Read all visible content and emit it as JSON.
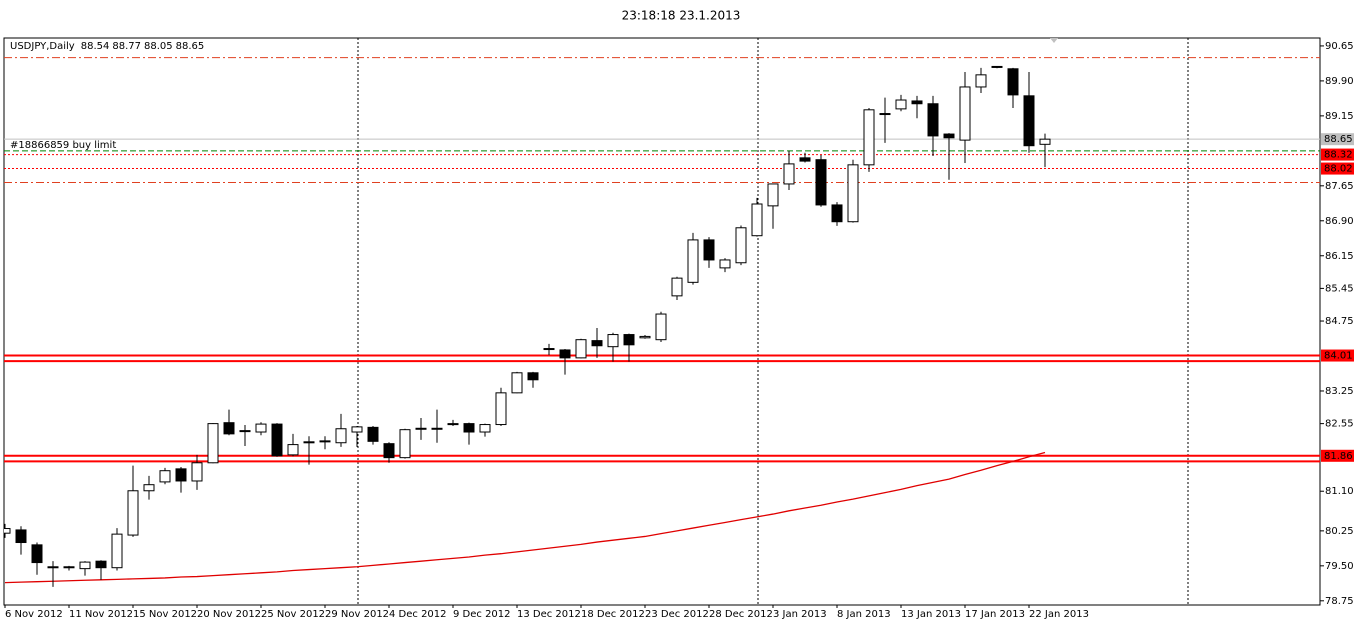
{
  "chart_data": {
    "type": "candlestick",
    "title": "23:18:18 23.1.2013",
    "symbol": "USDJPY,Daily",
    "categories": [
      "6 Nov 2012",
      null,
      null,
      null,
      "11 Nov 2012",
      null,
      null,
      null,
      "15 Nov 2012",
      null,
      null,
      null,
      "20 Nov 2012",
      null,
      null,
      null,
      "25 Nov 2012",
      null,
      null,
      null,
      "29 Nov 2012",
      null,
      null,
      null,
      "4 Dec 2012",
      null,
      null,
      null,
      "9 Dec 2012",
      null,
      null,
      null,
      "13 Dec 2012",
      null,
      null,
      null,
      "18 Dec 2012",
      null,
      null,
      null,
      "23 Dec 2012",
      null,
      null,
      null,
      "28 Dec 2012",
      null,
      null,
      null,
      "3 Jan 2013",
      null,
      null,
      null,
      "8 Jan 2013",
      null,
      null,
      null,
      "13 Jan 2013",
      null,
      null,
      null,
      "17 Jan 2013",
      null,
      null,
      null,
      "22 Jan 2013",
      null
    ],
    "open": [
      80.2,
      80.27,
      79.95,
      79.48,
      79.46,
      79.44,
      79.6,
      79.46,
      80.16,
      81.11,
      81.3,
      81.58,
      81.32,
      81.71,
      82.57,
      82.38,
      82.37,
      82.54,
      81.88,
      82.14,
      82.16,
      82.14,
      82.37,
      82.47,
      82.12,
      81.82,
      82.43,
      82.43,
      82.55,
      82.55,
      82.37,
      82.53,
      83.21,
      83.64,
      84.15,
      84.13,
      83.96,
      84.33,
      84.2,
      84.46,
      84.39,
      84.35,
      85.29,
      85.58,
      86.49,
      85.89,
      86.0,
      86.58,
      87.22,
      87.69,
      88.25,
      88.21,
      87.24,
      86.88,
      88.1,
      89.2,
      89.3,
      89.47,
      89.41,
      88.76,
      88.63,
      89.77,
      90.2,
      90.16,
      89.58,
      88.54
    ],
    "high": [
      80.4,
      80.35,
      80.0,
      79.6,
      79.5,
      79.6,
      79.62,
      80.31,
      81.65,
      81.43,
      81.6,
      81.62,
      81.88,
      82.56,
      82.85,
      82.52,
      82.58,
      82.56,
      82.33,
      82.28,
      82.28,
      82.76,
      82.5,
      82.5,
      82.15,
      82.44,
      82.67,
      82.85,
      82.63,
      82.57,
      82.55,
      83.32,
      83.66,
      83.66,
      84.26,
      84.15,
      84.37,
      84.6,
      84.5,
      84.48,
      84.45,
      84.95,
      85.7,
      86.64,
      86.55,
      86.1,
      86.8,
      87.39,
      87.7,
      88.4,
      88.36,
      88.31,
      87.3,
      88.21,
      89.32,
      89.54,
      89.6,
      89.58,
      89.58,
      88.78,
      90.09,
      90.18,
      90.22,
      90.18,
      90.09,
      88.77
    ],
    "low": [
      80.1,
      79.74,
      79.31,
      79.05,
      79.4,
      79.29,
      79.2,
      79.4,
      80.12,
      80.92,
      81.25,
      81.07,
      81.13,
      81.7,
      82.3,
      82.07,
      82.3,
      81.84,
      81.85,
      81.67,
      82.0,
      82.05,
      82.05,
      82.1,
      81.71,
      81.8,
      82.2,
      82.14,
      82.5,
      82.1,
      82.27,
      82.5,
      83.2,
      83.32,
      84.02,
      83.6,
      83.95,
      83.96,
      83.88,
      83.88,
      84.37,
      84.3,
      85.2,
      85.53,
      85.89,
      85.8,
      85.95,
      86.56,
      86.73,
      87.56,
      88.15,
      87.2,
      86.79,
      86.86,
      87.95,
      88.57,
      89.25,
      89.1,
      88.29,
      87.78,
      88.14,
      89.64,
      90.17,
      89.32,
      88.36,
      88.05
    ],
    "close": [
      80.3,
      80.0,
      79.57,
      79.46,
      79.48,
      79.58,
      79.46,
      80.18,
      81.11,
      81.24,
      81.54,
      81.32,
      81.71,
      82.55,
      82.33,
      82.4,
      82.54,
      81.86,
      82.1,
      82.16,
      82.18,
      82.44,
      82.48,
      82.17,
      81.82,
      82.42,
      82.45,
      82.45,
      82.54,
      82.37,
      82.53,
      83.21,
      83.64,
      83.49,
      84.16,
      83.96,
      84.35,
      84.22,
      84.46,
      84.24,
      84.42,
      84.9,
      85.67,
      86.49,
      86.06,
      86.06,
      86.75,
      87.26,
      87.69,
      88.12,
      88.18,
      87.24,
      86.88,
      88.1,
      89.28,
      89.19,
      89.49,
      89.41,
      88.72,
      88.68,
      89.77,
      90.03,
      90.21,
      89.6,
      88.51,
      88.65
    ],
    "moving_average": {
      "color": "#e00000",
      "values": [
        79.14,
        79.15,
        79.16,
        79.17,
        79.18,
        79.19,
        79.2,
        79.21,
        79.22,
        79.23,
        79.24,
        79.26,
        79.27,
        79.29,
        79.31,
        79.33,
        79.35,
        79.37,
        79.4,
        79.42,
        79.44,
        79.46,
        79.48,
        79.51,
        79.54,
        79.57,
        79.6,
        79.63,
        79.66,
        79.69,
        79.73,
        79.76,
        79.8,
        79.84,
        79.88,
        79.92,
        79.96,
        80.01,
        80.05,
        80.09,
        80.13,
        80.19,
        80.25,
        80.31,
        80.37,
        80.43,
        80.49,
        80.55,
        80.61,
        80.68,
        80.74,
        80.8,
        80.87,
        80.93,
        81.0,
        81.07,
        81.14,
        81.22,
        81.29,
        81.36,
        81.46,
        81.55,
        81.65,
        81.74,
        81.84,
        81.93
      ]
    },
    "ylim": [
      78.66,
      90.82
    ],
    "yticks": [
      90.65,
      {
        "value": 89.9,
        "label": "89.90"
      },
      89.15,
      87.65,
      {
        "value": 86.9,
        "label": "86.90"
      },
      86.15,
      85.45,
      84.75,
      83.25,
      82.55,
      {
        "value": 81.1,
        "label": "81.10"
      },
      80.25,
      {
        "value": 79.5,
        "label": "79.50"
      },
      78.75
    ],
    "price_markers": [
      {
        "value": 88.65,
        "color": "#c0c0c0",
        "text_color": "#000000"
      },
      {
        "value": 88.32,
        "color": "#ff0000",
        "text_color": "#ffffff"
      },
      {
        "value": 88.02,
        "color": "#ff0000",
        "text_color": "#ffffff"
      },
      {
        "value": 84.01,
        "color": "#ff0000",
        "text_color": "#ffffff"
      },
      {
        "value": 81.86,
        "color": "#ff0000",
        "text_color": "#ffffff"
      }
    ],
    "order_line": {
      "text": "#18866859 buy limit",
      "value": 88.4,
      "color": "#008000"
    },
    "zones": [
      {
        "top": 84.01,
        "bottom": 83.89,
        "color": "#ff0000"
      },
      {
        "top": 81.86,
        "bottom": 81.74,
        "color": "#ff0000"
      }
    ],
    "dash_dot_levels": [
      90.4,
      87.72
    ],
    "level_color": "#e04020",
    "up_color": "#ffffff",
    "down_color": "#000000"
  }
}
